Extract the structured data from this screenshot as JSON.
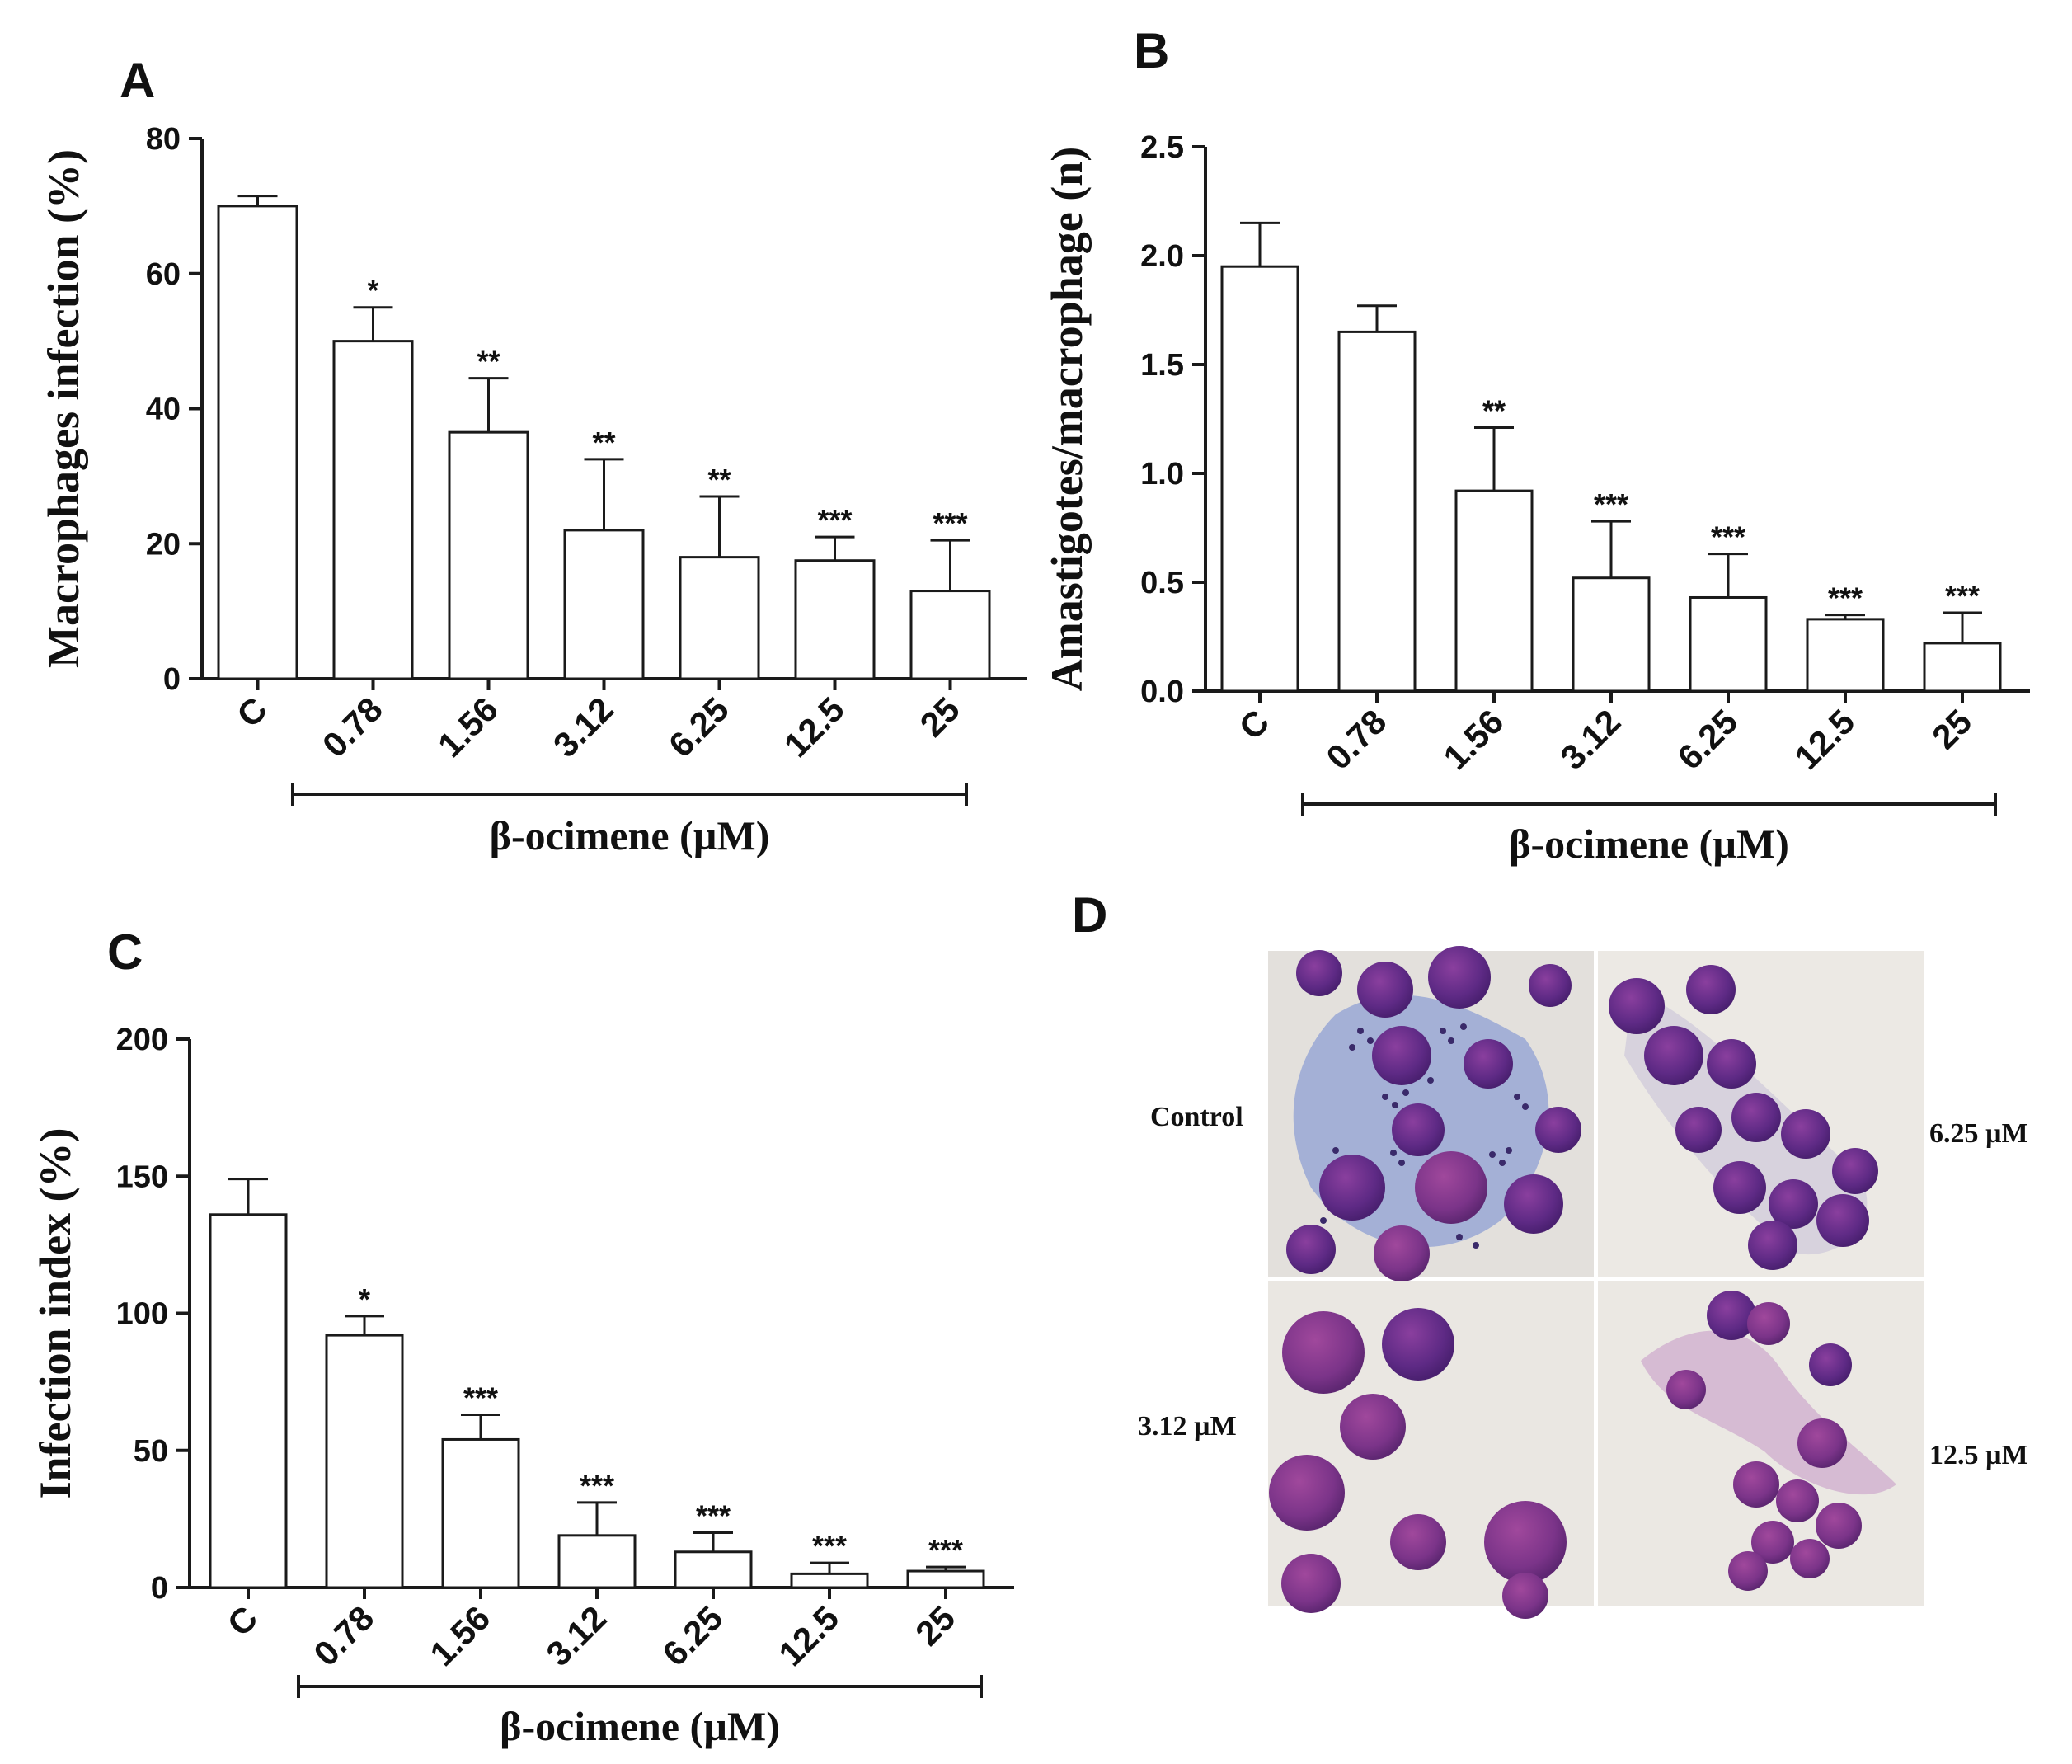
{
  "chart_data": [
    {
      "panel": "A",
      "type": "bar",
      "title": "",
      "ylabel": "Macrophages infection (%)",
      "xlabel": "β-ocimene (µM)",
      "ylim": [
        0,
        80
      ],
      "yticks": [
        0,
        20,
        40,
        60,
        80
      ],
      "categories": [
        "C",
        "0.78",
        "1.56",
        "3.12",
        "6.25",
        "12.5",
        "25"
      ],
      "values": [
        70,
        50,
        36.5,
        22,
        18,
        17.5,
        13
      ],
      "errors": [
        1.5,
        5,
        8,
        10.5,
        9,
        3.5,
        7.5
      ],
      "significance": [
        "",
        "*",
        "**",
        "**",
        "**",
        "***",
        "***"
      ]
    },
    {
      "panel": "B",
      "type": "bar",
      "title": "",
      "ylabel": "Amastigotes/macrophage (n)",
      "xlabel": "β-ocimene (µM)",
      "ylim": [
        0,
        2.5
      ],
      "yticks": [
        0,
        0.5,
        1.0,
        1.5,
        2.0,
        2.5
      ],
      "ytick_labels": [
        "0.0",
        "0.5",
        "1.0",
        "1.5",
        "2.0",
        "2.5"
      ],
      "categories": [
        "C",
        "0.78",
        "1.56",
        "3.12",
        "6.25",
        "12.5",
        "25"
      ],
      "values": [
        1.95,
        1.65,
        0.92,
        0.52,
        0.43,
        0.33,
        0.22
      ],
      "errors": [
        0.2,
        0.12,
        0.29,
        0.26,
        0.2,
        0.02,
        0.14
      ],
      "significance": [
        "",
        "",
        "**",
        "***",
        "***",
        "***",
        "***"
      ]
    },
    {
      "panel": "C",
      "type": "bar",
      "title": "",
      "ylabel": "Infection index (%)",
      "xlabel": "β-ocimene (µM)",
      "ylim": [
        0,
        200
      ],
      "yticks": [
        0,
        50,
        100,
        150,
        200
      ],
      "categories": [
        "C",
        "0.78",
        "1.56",
        "3.12",
        "6.25",
        "12.5",
        "25"
      ],
      "values": [
        136,
        92,
        54,
        19,
        13,
        5,
        6
      ],
      "errors": [
        13,
        7,
        9,
        12,
        7,
        4,
        1.5
      ],
      "significance": [
        "",
        "*",
        "***",
        "***",
        "***",
        "***",
        "***"
      ]
    }
  ],
  "panel_d": {
    "letter": "D",
    "labels": {
      "control": "Control",
      "dose_625": "6.25 µM",
      "dose_312": "3.12 µM",
      "dose_125": "12.5 µM"
    }
  }
}
